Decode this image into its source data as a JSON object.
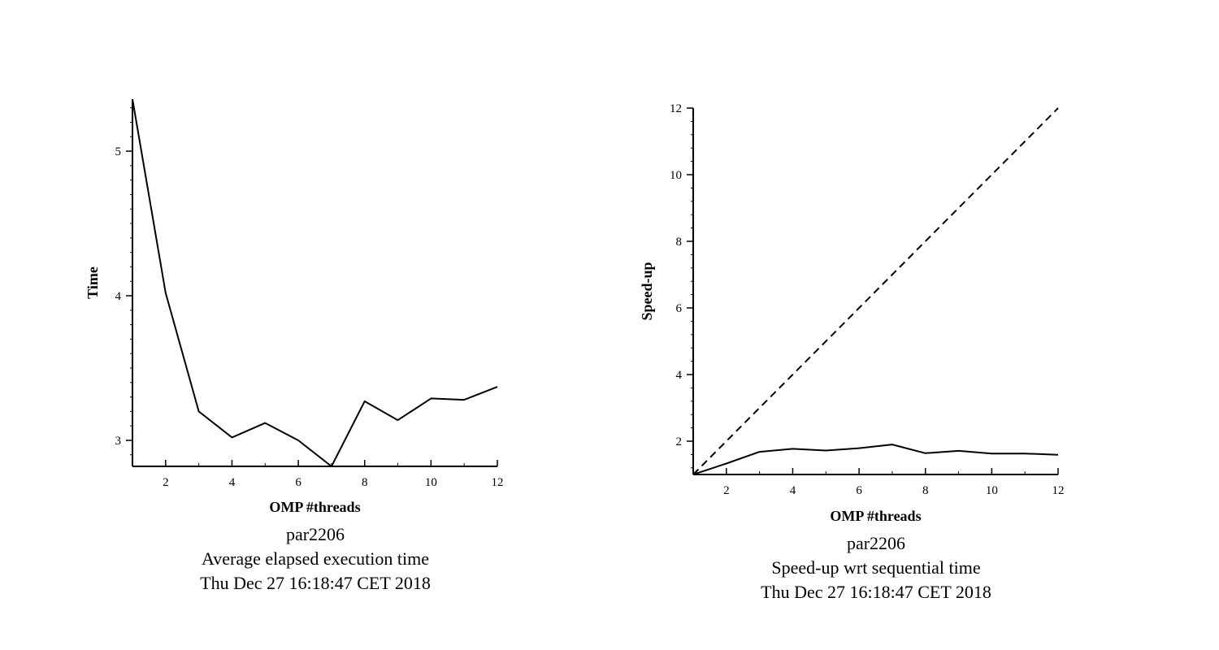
{
  "chart_data": [
    {
      "type": "line",
      "title": "Average elapsed execution time",
      "captions": [
        "par2206",
        "Average elapsed execution time",
        "Thu Dec 27 16:18:47 CET 2018"
      ],
      "xlabel": "OMP #threads",
      "ylabel": "Time",
      "xlim": [
        1,
        12
      ],
      "ylim": [
        2.82,
        5.36
      ],
      "xticks": [
        2,
        4,
        6,
        8,
        10,
        12
      ],
      "yticks": [
        3,
        4,
        5
      ],
      "x": [
        1,
        2,
        3,
        4,
        5,
        6,
        7,
        8,
        9,
        10,
        11,
        12
      ],
      "series": [
        {
          "values": [
            5.36,
            4.02,
            3.2,
            3.02,
            3.12,
            3.0,
            2.82,
            3.27,
            3.14,
            3.29,
            3.28,
            3.37
          ],
          "dash": false
        }
      ],
      "grid": false
    },
    {
      "type": "line",
      "title": "Speed-up wrt sequential time",
      "captions": [
        "par2206",
        "Speed-up wrt sequential time",
        "Thu Dec 27 16:18:47 CET 2018"
      ],
      "xlabel": "OMP #threads",
      "ylabel": "Speed-up",
      "xlim": [
        1,
        12
      ],
      "ylim": [
        1,
        12
      ],
      "xticks": [
        2,
        4,
        6,
        8,
        10,
        12
      ],
      "yticks": [
        2,
        4,
        6,
        8,
        10,
        12
      ],
      "x": [
        1,
        2,
        3,
        4,
        5,
        6,
        7,
        8,
        9,
        10,
        11,
        12
      ],
      "series": [
        {
          "values": [
            1.0,
            1.33,
            1.68,
            1.77,
            1.72,
            1.79,
            1.9,
            1.64,
            1.71,
            1.63,
            1.63,
            1.59
          ],
          "dash": false
        },
        {
          "values": [
            1,
            2,
            3,
            4,
            5,
            6,
            7,
            8,
            9,
            10,
            11,
            12
          ],
          "dash": true
        }
      ],
      "grid": false
    }
  ]
}
